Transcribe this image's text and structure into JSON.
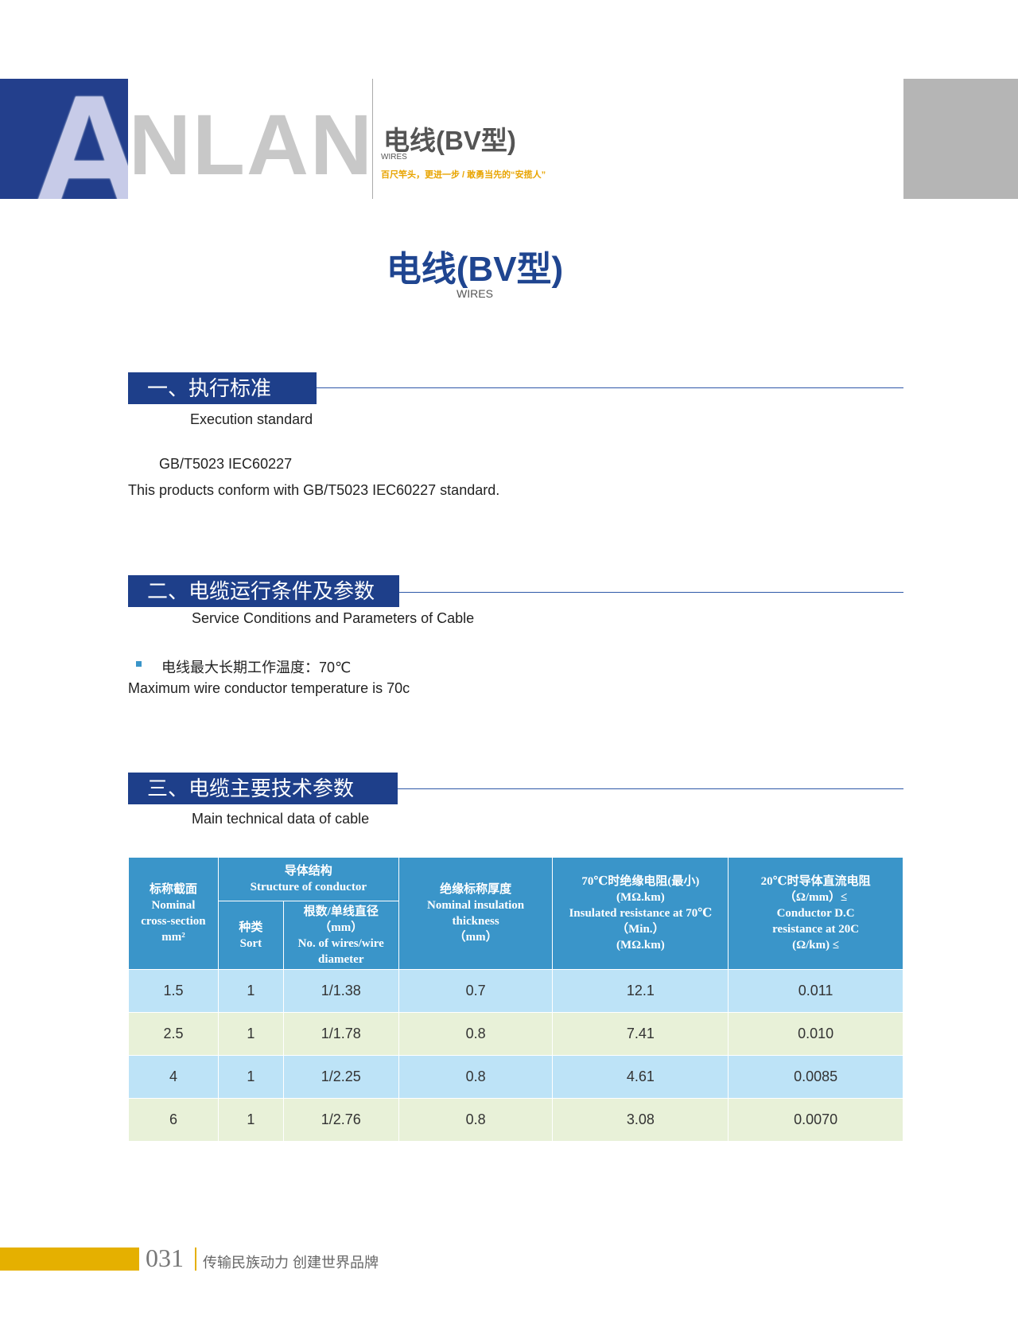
{
  "header": {
    "logo_text": "ANLAN",
    "title": "电线(BV型)",
    "subtitle": "WIRES",
    "slogan": "百尺竿头，更进一步 / 敢勇当先的“安揽人”"
  },
  "main": {
    "title": "电线(BV型)",
    "subtitle": "WIRES"
  },
  "sections": [
    {
      "title": "一、执行标准",
      "subtitle": "Execution standard",
      "lines": [
        "GB/T5023  IEC60227",
        "This products conform with GB/T5023  IEC60227 standard."
      ]
    },
    {
      "title": "二、电缆运行条件及参数",
      "subtitle": "Service Conditions and Parameters of Cable",
      "bullet": "电线最大长期工作温度：70℃",
      "english": "Maximum wire conductor temperature is 70c"
    },
    {
      "title": "三、电缆主要技术参数",
      "subtitle": "Main technical data of cable"
    }
  ],
  "table": {
    "headers": {
      "cross_section": [
        "标称截面",
        "Nominal",
        "cross-section",
        "mm²"
      ],
      "structure": [
        "导体结构",
        "Structure of conductor"
      ],
      "sort": [
        "种类",
        "Sort"
      ],
      "wires": [
        "根数/单线直径",
        "（mm）",
        "No. of wires/wire",
        "diameter"
      ],
      "insulation": [
        "绝缘标称厚度",
        "Nominal insulation",
        "thickness",
        "（mm）"
      ],
      "resistance70": [
        "70℃时绝缘电阻(最小)",
        "(MΩ.km)",
        "Insulated resistance at 70℃",
        "（Min.）",
        "(MΩ.km)"
      ],
      "resistance20": [
        "20℃时导体直流电阻",
        "（Ω/mm）≤",
        "Conductor D.C",
        "resistance at 20C",
        "(Ω/km) ≤"
      ]
    },
    "rows": [
      [
        "1.5",
        "1",
        "1/1.38",
        "0.7",
        "12.1",
        "0.011"
      ],
      [
        "2.5",
        "1",
        "1/1.78",
        "0.8",
        "7.41",
        "0.010"
      ],
      [
        "4",
        "1",
        "1/2.25",
        "0.8",
        "4.61",
        "0.0085"
      ],
      [
        "6",
        "1",
        "1/2.76",
        "0.8",
        "3.08",
        "0.0070"
      ]
    ]
  },
  "footer": {
    "page": "031",
    "slogan": "传输民族动力  创建世界品牌"
  },
  "colors": {
    "brand_blue": "#1e3f8a",
    "table_header": "#3a95c9",
    "row_blue": "#bde3f7",
    "row_green": "#e8f1d8",
    "accent_yellow": "#e5b000"
  }
}
